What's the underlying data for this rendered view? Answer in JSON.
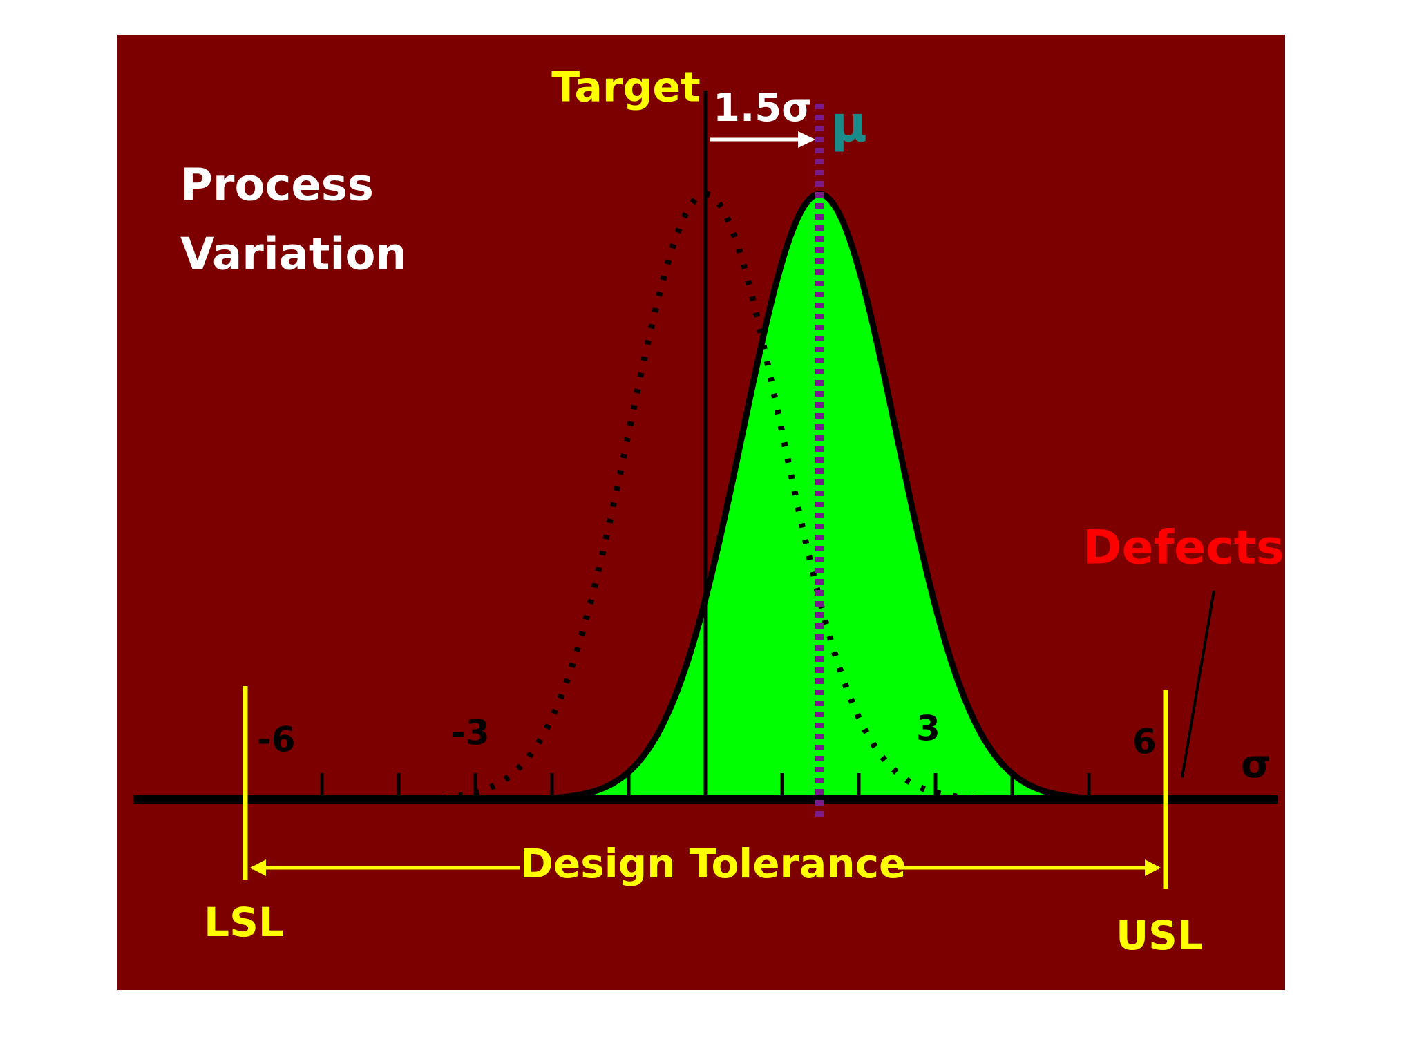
{
  "title": {
    "lines": [
      "Process",
      "Variation"
    ]
  },
  "labels": {
    "target": "Target",
    "shift": "1.5σ",
    "mean": "μ",
    "defects": "Defects",
    "sigma": "σ",
    "tolerance": "Design Tolerance",
    "lsl": "LSL",
    "usl": "USL"
  },
  "scale": [
    "-6",
    "-3",
    "3",
    "6"
  ]
}
